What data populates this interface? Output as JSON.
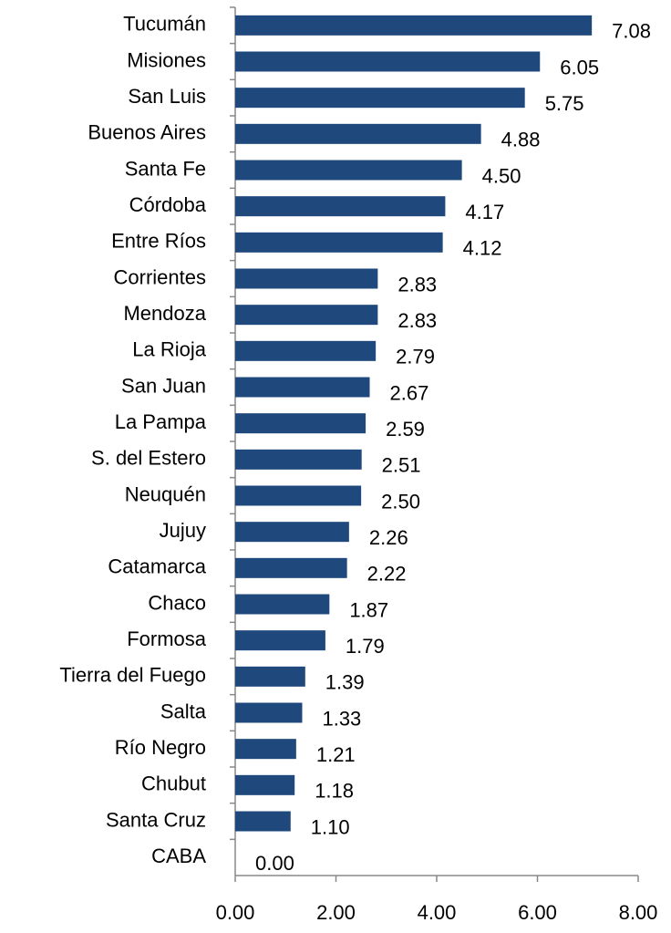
{
  "chart_data": {
    "type": "barh",
    "categories": [
      "Tucumán",
      "Misiones",
      "San Luis",
      "Buenos Aires",
      "Santa Fe",
      "Córdoba",
      "Entre Ríos",
      "Corrientes",
      "Mendoza",
      "La Rioja",
      "San Juan",
      "La Pampa",
      "S. del Estero",
      "Neuquén",
      "Jujuy",
      "Catamarca",
      "Chaco",
      "Formosa",
      "Tierra del Fuego",
      "Salta",
      "Río Negro",
      "Chubut",
      "Santa Cruz",
      "CABA"
    ],
    "values": [
      7.08,
      6.05,
      5.75,
      4.88,
      4.5,
      4.17,
      4.12,
      2.83,
      2.83,
      2.79,
      2.67,
      2.59,
      2.51,
      2.5,
      2.26,
      2.22,
      1.87,
      1.79,
      1.39,
      1.33,
      1.21,
      1.18,
      1.1,
      0
    ],
    "value_labels": [
      "7.08",
      "6.05",
      "5.75",
      "4.88",
      "4.50",
      "4.17",
      "4.12",
      "2.83",
      "2.83",
      "2.79",
      "2.67",
      "2.59",
      "2.51",
      "2.50",
      "2.26",
      "2.22",
      "1.87",
      "1.79",
      "1.39",
      "1.33",
      "1.21",
      "1.18",
      "1.10",
      "0.00"
    ],
    "color": "#1f497d",
    "xlim": [
      0,
      8
    ],
    "xticks": [
      {
        "value": 0,
        "label": "0.00"
      },
      {
        "value": 2,
        "label": "2.00"
      },
      {
        "value": 4,
        "label": "4.00"
      },
      {
        "value": 6,
        "label": "6.00"
      },
      {
        "value": 8,
        "label": "8.00"
      }
    ]
  }
}
